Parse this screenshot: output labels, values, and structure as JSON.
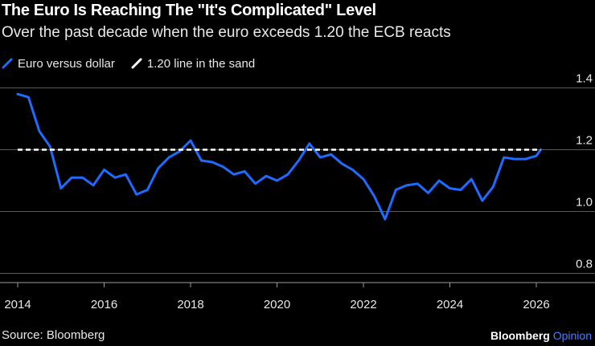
{
  "header": {
    "title": "The Euro Is Reaching The \"It's Complicated\" Level",
    "subtitle": "Over the past decade when the euro exceeds 1.20 the ECB reacts"
  },
  "legend": {
    "items": [
      {
        "label": "Euro versus dollar",
        "color": "#1f6bff"
      },
      {
        "label": "1.20 line in the sand",
        "color": "#ffffff"
      }
    ]
  },
  "footer": {
    "source": "Source: Bloomberg",
    "brand_main": "Bloomberg",
    "brand_sub": "Opinion"
  },
  "chart_data": {
    "type": "line",
    "title": "The Euro Is Reaching The \"It's Complicated\" Level",
    "xlabel": "",
    "ylabel": "",
    "xlim": [
      2013.95,
      2027.2
    ],
    "ylim": [
      0.77,
      1.43
    ],
    "x_ticks": [
      2014,
      2016,
      2018,
      2020,
      2022,
      2024,
      2026
    ],
    "x_tick_labels": [
      "2014",
      "2016",
      "2018",
      "2020",
      "2022",
      "2024",
      "2026"
    ],
    "y_ticks": [
      0.8,
      1.0,
      1.2,
      1.4
    ],
    "y_tick_labels": [
      "0.8",
      "1.0",
      "1.2",
      "1.4"
    ],
    "grid": "horizontal",
    "series": [
      {
        "name": "Euro versus dollar",
        "color": "#1f6bff",
        "x": [
          2014.0,
          2014.25,
          2014.5,
          2014.75,
          2015.0,
          2015.25,
          2015.5,
          2015.75,
          2016.0,
          2016.25,
          2016.5,
          2016.75,
          2017.0,
          2017.25,
          2017.5,
          2017.75,
          2018.0,
          2018.25,
          2018.5,
          2018.75,
          2019.0,
          2019.25,
          2019.5,
          2019.75,
          2020.0,
          2020.25,
          2020.5,
          2020.75,
          2021.0,
          2021.25,
          2021.5,
          2021.75,
          2022.0,
          2022.25,
          2022.5,
          2022.75,
          2023.0,
          2023.25,
          2023.5,
          2023.75,
          2024.0,
          2024.25,
          2024.5,
          2024.75,
          2025.0,
          2025.25,
          2025.5,
          2025.75,
          2026.0,
          2026.1
        ],
        "values": [
          1.38,
          1.37,
          1.26,
          1.21,
          1.075,
          1.11,
          1.11,
          1.085,
          1.135,
          1.11,
          1.12,
          1.055,
          1.07,
          1.14,
          1.175,
          1.195,
          1.23,
          1.165,
          1.16,
          1.145,
          1.12,
          1.13,
          1.09,
          1.115,
          1.1,
          1.12,
          1.165,
          1.22,
          1.175,
          1.185,
          1.155,
          1.135,
          1.105,
          1.05,
          0.975,
          1.07,
          1.085,
          1.09,
          1.06,
          1.1,
          1.075,
          1.07,
          1.105,
          1.035,
          1.08,
          1.175,
          1.17,
          1.17,
          1.18,
          1.2
        ]
      },
      {
        "name": "1.20 line in the sand",
        "color": "#ffffff",
        "dashed": true,
        "x": [
          2014.0,
          2026.1
        ],
        "values": [
          1.2,
          1.2
        ]
      }
    ]
  }
}
